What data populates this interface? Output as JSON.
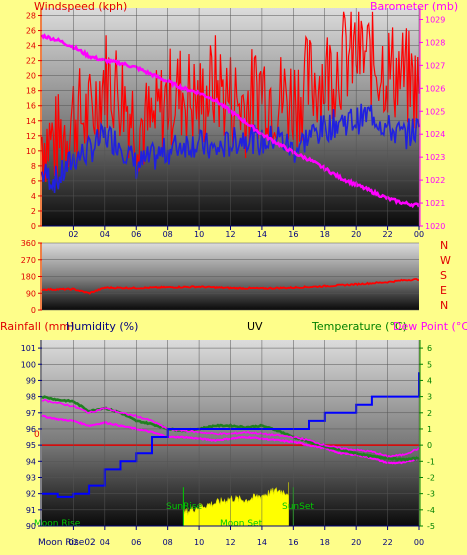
{
  "panel1": {
    "left_title": "Windspeed (kph)",
    "right_title": "Barometer (mb)",
    "subtitle": "",
    "left_ticks": [
      "0",
      "2",
      "4",
      "6",
      "8",
      "10",
      "12",
      "14",
      "16",
      "18",
      "20",
      "22",
      "24",
      "26",
      "28"
    ],
    "right_ticks": [
      "1020",
      "1021",
      "1022",
      "1023",
      "1024",
      "1025",
      "1026",
      "1027",
      "1028",
      "1029"
    ]
  },
  "panel2": {
    "ticks": [
      "0",
      "90",
      "180",
      "270",
      "360"
    ],
    "compass": [
      "N",
      "W",
      "S",
      "E",
      "N"
    ]
  },
  "panel3": {
    "rain_title": "Rainfall (mm)",
    "humidity_title": "Humidity (%)",
    "uv_title": "UV",
    "temp_title": "Temperature (°C)",
    "dew_title": "Dew Point (°C)",
    "left_ticks": [
      "90",
      "91",
      "92",
      "93",
      "94",
      "95",
      "96",
      "97",
      "98",
      "99",
      "100",
      "101"
    ],
    "right_ticks": [
      "-5",
      "-4",
      "-3",
      "-2",
      "-1",
      "0",
      "1",
      "2",
      "3",
      "4",
      "5",
      "6"
    ],
    "zero_label": "0",
    "moon_rise": "Moon Rise",
    "moon_set": "Moon Set",
    "sunrise": "SunRise",
    "sunset": "SunSet"
  },
  "x_ticks": [
    "02",
    "04",
    "06",
    "08",
    "10",
    "12",
    "14",
    "16",
    "18",
    "20",
    "22",
    "00"
  ],
  "x_footer": "Moon Rise02",
  "colors": {
    "background": "#fefe8a",
    "wind": "#ff0000",
    "avg_wind": "#2020e0",
    "barometer": "#ff00ff",
    "direction": "#ff0000",
    "humidity": "#ff00ff",
    "temperature": "#208020",
    "dewpoint": "#ff00ff",
    "rain": "#0000ff",
    "uv": "#ffff00",
    "title_red": "#e00000",
    "title_green": "#008000"
  },
  "chart_data": [
    {
      "type": "line",
      "name": "wind-barometer",
      "x_hours": [
        0,
        1,
        2,
        3,
        4,
        5,
        6,
        7,
        8,
        9,
        10,
        11,
        12,
        13,
        14,
        15,
        16,
        17,
        18,
        19,
        20,
        21,
        22,
        23,
        24
      ],
      "series": [
        {
          "name": "Gust",
          "axis": "left",
          "values": [
            12,
            11,
            15,
            14,
            20,
            18,
            14,
            13,
            17,
            18,
            16,
            19,
            17,
            16,
            19,
            17,
            17,
            19,
            20,
            22,
            23,
            22,
            21,
            20,
            18
          ]
        },
        {
          "name": "Average",
          "axis": "left",
          "values": [
            7,
            6,
            9,
            10,
            12,
            11,
            8,
            9,
            10,
            11,
            11,
            10,
            11,
            12,
            11,
            12,
            10,
            12,
            13,
            14,
            14,
            15,
            13,
            12,
            13
          ]
        },
        {
          "name": "Barometer",
          "axis": "right",
          "values": [
            1028.3,
            1028.1,
            1027.8,
            1027.4,
            1027.2,
            1027.1,
            1026.9,
            1026.6,
            1026.3,
            1026.0,
            1025.8,
            1025.5,
            1025.0,
            1024.5,
            1024.0,
            1023.6,
            1023.2,
            1022.9,
            1022.5,
            1022.1,
            1021.8,
            1021.5,
            1021.2,
            1021.0,
            1020.9
          ]
        }
      ],
      "ylim_left": [
        0,
        29
      ],
      "ylim_right": [
        1020,
        1029.5
      ]
    },
    {
      "type": "line",
      "name": "wind-direction",
      "x_hours": [
        0,
        2,
        3,
        4,
        6,
        8,
        10,
        12,
        14,
        16,
        18,
        20,
        22,
        23,
        24
      ],
      "series": [
        {
          "name": "Direction",
          "values": [
            110,
            112,
            90,
            120,
            118,
            122,
            125,
            118,
            116,
            120,
            128,
            138,
            150,
            160,
            165
          ]
        }
      ],
      "ylim": [
        0,
        360
      ]
    },
    {
      "type": "line",
      "name": "humidity-temp-rain-uv",
      "x_hours": [
        0,
        1,
        2,
        3,
        4,
        5,
        6,
        7,
        8,
        9,
        10,
        11,
        12,
        13,
        14,
        15,
        16,
        17,
        18,
        19,
        20,
        21,
        22,
        23,
        24
      ],
      "series": [
        {
          "name": "Humidity",
          "axis": "left",
          "values": [
            97.8,
            97.6,
            97.4,
            97.0,
            97.3,
            97.0,
            96.8,
            96.5,
            96.0,
            95.9,
            95.8,
            95.7,
            95.7,
            95.8,
            95.7,
            95.6,
            95.5,
            95.3,
            95.0,
            94.8,
            94.7,
            94.6,
            94.3,
            94.4,
            94.8
          ]
        },
        {
          "name": "Temperature",
          "axis": "right",
          "values": [
            3.0,
            2.8,
            2.7,
            2.1,
            2.3,
            2.0,
            1.5,
            1.3,
            1.0,
            0.9,
            1.0,
            1.2,
            1.2,
            1.1,
            1.2,
            0.9,
            0.5,
            0.2,
            -0.1,
            -0.3,
            -0.5,
            -0.7,
            -0.8,
            -0.9,
            -0.8
          ]
        },
        {
          "name": "Dew Point",
          "axis": "right",
          "values": [
            1.8,
            1.6,
            1.5,
            1.2,
            1.4,
            1.2,
            1.0,
            0.8,
            0.5,
            0.5,
            0.4,
            0.3,
            0.4,
            0.5,
            0.4,
            0.3,
            0.2,
            0.0,
            -0.2,
            -0.5,
            -0.6,
            -0.8,
            -1.1,
            -1.1,
            -0.8
          ]
        },
        {
          "name": "Rainfall",
          "axis": "left",
          "values": [
            92,
            91.8,
            92,
            92.5,
            93.5,
            94,
            94.5,
            95.5,
            96,
            96,
            96,
            96,
            96,
            96,
            96,
            96,
            96,
            96.5,
            97,
            97,
            97.5,
            98,
            98,
            98,
            99.5
          ]
        },
        {
          "name": "UV",
          "axis": "right",
          "values": [
            null,
            null,
            null,
            null,
            null,
            null,
            null,
            null,
            null,
            -4.2,
            -3.8,
            -3.6,
            -3.3,
            -3.4,
            -3.1,
            -2.8,
            null,
            null,
            null,
            null,
            null,
            null,
            null,
            null,
            null
          ]
        }
      ],
      "ylim_left": [
        90,
        101.5
      ],
      "ylim_right": [
        -5,
        6.5
      ]
    }
  ]
}
